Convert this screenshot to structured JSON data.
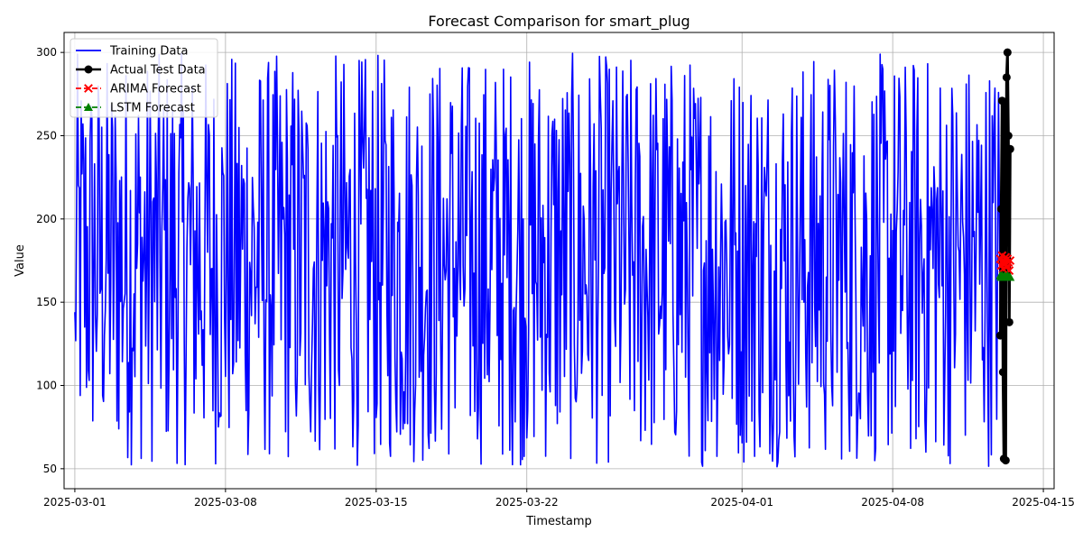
{
  "chart_data": {
    "type": "line",
    "title": "Forecast Comparison for smart_plug",
    "xlabel": "Timestamp",
    "ylabel": "Value",
    "x_range": [
      "2025-02-28 12:00",
      "2025-04-15 12:00"
    ],
    "ylim": [
      38,
      312
    ],
    "grid": true,
    "legend_position": "top-left",
    "x_ticks": [
      {
        "date": "2025-03-01",
        "label": "2025-03-01"
      },
      {
        "date": "2025-03-08",
        "label": "2025-03-08"
      },
      {
        "date": "2025-03-15",
        "label": "2025-03-15"
      },
      {
        "date": "2025-03-22",
        "label": "2025-03-22"
      },
      {
        "date": "2025-04-01",
        "label": "2025-04-01"
      },
      {
        "date": "2025-04-08",
        "label": "2025-04-08"
      },
      {
        "date": "2025-04-15",
        "label": "2025-04-15"
      }
    ],
    "y_ticks": [
      {
        "value": 50,
        "label": "50"
      },
      {
        "value": 100,
        "label": "100"
      },
      {
        "value": 150,
        "label": "150"
      },
      {
        "value": 200,
        "label": "200"
      },
      {
        "value": 250,
        "label": "250"
      },
      {
        "value": 300,
        "label": "300"
      }
    ],
    "training": {
      "name": "Training Data",
      "color": "#0000ff",
      "start": "2025-03-01 00:00",
      "end": "2025-04-13 00:00",
      "count": 1033,
      "min": 51,
      "max": 300,
      "note_values": "hourly series fluctuating between about 51 and 300 around a mean of about 175"
    },
    "series": [
      {
        "name": "Actual Test Data",
        "color": "#000000",
        "marker": "circle",
        "x": [
          "2025-04-13 00:00",
          "2025-04-13 01:00",
          "2025-04-13 02:00",
          "2025-04-13 03:00",
          "2025-04-13 04:00",
          "2025-04-13 05:00",
          "2025-04-13 06:00",
          "2025-04-13 07:00",
          "2025-04-13 08:00",
          "2025-04-13 09:00",
          "2025-04-13 10:00",
          "2025-04-13 11:00"
        ],
        "y": [
          130,
          206,
          271,
          108,
          56,
          268,
          55,
          285,
          300,
          250,
          138,
          242
        ]
      },
      {
        "name": "ARIMA Forecast",
        "color": "#ff0000",
        "marker": "x",
        "x": [
          "2025-04-13 00:00",
          "2025-04-13 01:00",
          "2025-04-13 02:00",
          "2025-04-13 03:00",
          "2025-04-13 04:00",
          "2025-04-13 05:00",
          "2025-04-13 06:00",
          "2025-04-13 07:00",
          "2025-04-13 08:00",
          "2025-04-13 09:00",
          "2025-04-13 10:00",
          "2025-04-13 11:00"
        ],
        "y": [
          176,
          172,
          178,
          170,
          175,
          173,
          177,
          171,
          176,
          174,
          169,
          175
        ]
      },
      {
        "name": "LSTM Forecast",
        "color": "#008000",
        "marker": "triangle",
        "x": [
          "2025-04-13 00:00",
          "2025-04-13 01:00",
          "2025-04-13 02:00",
          "2025-04-13 03:00",
          "2025-04-13 04:00",
          "2025-04-13 05:00",
          "2025-04-13 06:00",
          "2025-04-13 07:00",
          "2025-04-13 08:00",
          "2025-04-13 09:00",
          "2025-04-13 10:00",
          "2025-04-13 11:00"
        ],
        "y": [
          166,
          165,
          166,
          165,
          165,
          166,
          165,
          165,
          166,
          165,
          165,
          165
        ]
      }
    ]
  }
}
